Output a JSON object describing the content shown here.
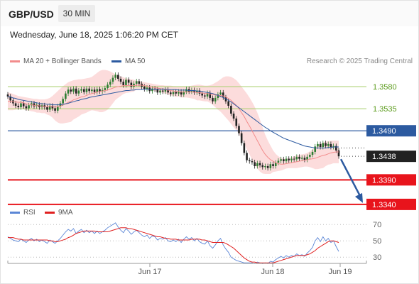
{
  "header": {
    "symbol": "GBP/USD",
    "timeframe": "30 MIN"
  },
  "datetime": "Wednesday, June 18, 2025 1:06:20 PM CET",
  "legend": {
    "ma20_label": "MA 20 + Bollinger Bands",
    "ma50_label": "MA 50",
    "ma20_color": "#f28c8c",
    "ma50_color": "#2c5aa0",
    "credit": "Research © 2025 Trading Central"
  },
  "rsi_legend": {
    "rsi_label": "RSI",
    "ma9_label": "9MA",
    "rsi_color": "#5b86d6",
    "ma9_color": "#e02020"
  },
  "levels": [
    {
      "value": 1.358,
      "label": "1.3580",
      "kind": "green"
    },
    {
      "value": 1.3535,
      "label": "1.3535",
      "kind": "green"
    },
    {
      "value": 1.349,
      "label": "1.3490",
      "kind": "blue"
    },
    {
      "value": 1.3438,
      "label": "1.3438",
      "kind": "current"
    },
    {
      "value": 1.339,
      "label": "1.3390",
      "kind": "red"
    },
    {
      "value": 1.334,
      "label": "1.3340",
      "kind": "red"
    }
  ],
  "colors": {
    "green_level": "#a9cf6e",
    "blue_level": "#2c5aa0",
    "red_level": "#e8141c",
    "current": "#222222",
    "up_candle": "#2e7d32",
    "down_candle": "#222222",
    "band_fill": "#fbd6d6",
    "arrow": "#2c5aa0"
  },
  "x_axis": {
    "ticks": [
      "Jun 17",
      "Jun 18",
      "Jun 19"
    ]
  },
  "rsi_axis": {
    "ticks": [
      "70",
      "50",
      "30"
    ]
  },
  "chart_data": {
    "type": "candlestick",
    "price_range": [
      1.3308,
      1.3622
    ],
    "closes": [
      1.356,
      1.3552,
      1.3546,
      1.3541,
      1.3538,
      1.3546,
      1.354,
      1.3536,
      1.3542,
      1.3546,
      1.354,
      1.3543,
      1.3538,
      1.3542,
      1.3538,
      1.3533,
      1.3541,
      1.3536,
      1.3531,
      1.354,
      1.3546,
      1.3555,
      1.3566,
      1.3574,
      1.357,
      1.3576,
      1.3566,
      1.3572,
      1.3575,
      1.3569,
      1.3576,
      1.3571,
      1.3574,
      1.3569,
      1.3575,
      1.357,
      1.3573,
      1.3577,
      1.3584,
      1.359,
      1.3598,
      1.3604,
      1.3596,
      1.359,
      1.3583,
      1.3594,
      1.3588,
      1.358,
      1.3586,
      1.3591,
      1.3586,
      1.358,
      1.3575,
      1.3578,
      1.3571,
      1.3576,
      1.3574,
      1.3568,
      1.3572,
      1.357,
      1.3574,
      1.3568,
      1.3565,
      1.3569,
      1.3566,
      1.357,
      1.3564,
      1.357,
      1.3575,
      1.357,
      1.3573,
      1.3568,
      1.3572,
      1.3566,
      1.3562,
      1.356,
      1.3567,
      1.3557,
      1.355,
      1.3557,
      1.3564,
      1.3568,
      1.3558,
      1.355,
      1.3541,
      1.3525,
      1.3515,
      1.35,
      1.3485,
      1.3465,
      1.3445,
      1.343,
      1.3428,
      1.3426,
      1.3418,
      1.3424,
      1.342,
      1.3416,
      1.3418,
      1.3414,
      1.3422,
      1.3418,
      1.3425,
      1.3429,
      1.3432,
      1.3428,
      1.3433,
      1.343,
      1.3433,
      1.3432,
      1.3437,
      1.3433,
      1.3435,
      1.3431,
      1.3437,
      1.3441,
      1.3447,
      1.3458,
      1.3463,
      1.3457,
      1.3465,
      1.3459,
      1.3463,
      1.3457,
      1.3459,
      1.345,
      1.3438
    ],
    "ma20": [
      1.355,
      1.355,
      1.3549,
      1.3549,
      1.3548,
      1.3548,
      1.3547,
      1.3545,
      1.3544,
      1.3543,
      1.3542,
      1.3541,
      1.3541,
      1.354,
      1.354,
      1.3539,
      1.3539,
      1.3539,
      1.3538,
      1.3539,
      1.354,
      1.3543,
      1.3545,
      1.3548,
      1.355,
      1.3553,
      1.3555,
      1.3557,
      1.3559,
      1.356,
      1.3562,
      1.3564,
      1.3566,
      1.3567,
      1.3569,
      1.357,
      1.3571,
      1.3572,
      1.3573,
      1.3575,
      1.3577,
      1.3579,
      1.358,
      1.3581,
      1.3582,
      1.3582,
      1.3582,
      1.3582,
      1.3582,
      1.3583,
      1.3583,
      1.3583,
      1.3582,
      1.3581,
      1.358,
      1.3579,
      1.3578,
      1.3577,
      1.3576,
      1.3575,
      1.3574,
      1.3573,
      1.3572,
      1.3571,
      1.357,
      1.357,
      1.3569,
      1.3569,
      1.3569,
      1.3569,
      1.3569,
      1.3569,
      1.3568,
      1.3568,
      1.3567,
      1.3566,
      1.3566,
      1.3565,
      1.3564,
      1.3563,
      1.3562,
      1.3562,
      1.3561,
      1.3559,
      1.3556,
      1.3552,
      1.3547,
      1.3542,
      1.3535,
      1.3527,
      1.3519,
      1.3509,
      1.35,
      1.349,
      1.348,
      1.347,
      1.346,
      1.345,
      1.3442,
      1.3436,
      1.3431,
      1.3428,
      1.3425,
      1.3423,
      1.3422,
      1.3422,
      1.3423,
      1.3424,
      1.3425,
      1.3426,
      1.3427,
      1.3428,
      1.3429,
      1.343,
      1.3431,
      1.3432,
      1.3433,
      1.3434,
      1.3436,
      1.3438,
      1.344,
      1.3441,
      1.3443,
      1.3445,
      1.3446,
      1.3447,
      1.3447
    ],
    "upper_band": [
      1.3568,
      1.3567,
      1.3565,
      1.3563,
      1.3561,
      1.356,
      1.3559,
      1.3558,
      1.3557,
      1.3556,
      1.3555,
      1.3555,
      1.3554,
      1.3554,
      1.3554,
      1.3555,
      1.3557,
      1.3561,
      1.3566,
      1.3571,
      1.3576,
      1.3581,
      1.3585,
      1.3589,
      1.3591,
      1.3593,
      1.3594,
      1.3595,
      1.3595,
      1.3596,
      1.3597,
      1.3598,
      1.36,
      1.3604,
      1.3608,
      1.3612,
      1.3614,
      1.3614,
      1.3613,
      1.3611,
      1.3608,
      1.3605,
      1.3603,
      1.3601,
      1.3599,
      1.3597,
      1.3596,
      1.3595,
      1.3594,
      1.3592,
      1.3591,
      1.359,
      1.3589,
      1.3588,
      1.3587,
      1.3586,
      1.3585,
      1.3584,
      1.3583,
      1.3583,
      1.3582,
      1.3582,
      1.3582,
      1.3581,
      1.3581,
      1.358,
      1.358,
      1.358,
      1.358,
      1.3581,
      1.3582,
      1.3583,
      1.3584,
      1.3584,
      1.3583,
      1.3582,
      1.3582,
      1.3583,
      1.3585,
      1.3588,
      1.3591,
      1.3595,
      1.3599,
      1.3601,
      1.3601,
      1.36,
      1.3597,
      1.3593,
      1.3587,
      1.358,
      1.3573,
      1.3566,
      1.3558,
      1.3549,
      1.3539,
      1.3527,
      1.3513,
      1.3497,
      1.3482,
      1.347,
      1.346,
      1.345,
      1.3443,
      1.3438,
      1.3435,
      1.3433,
      1.3433,
      1.3434,
      1.3436,
      1.3438,
      1.344,
      1.3441,
      1.3442,
      1.3443,
      1.3445,
      1.3448,
      1.3452,
      1.3456,
      1.346,
      1.3463,
      1.3466,
      1.3468,
      1.3469,
      1.347,
      1.347,
      1.347,
      1.347
    ],
    "lower_band": [
      1.3532,
      1.3532,
      1.3532,
      1.3533,
      1.3534,
      1.3534,
      1.3534,
      1.3532,
      1.3531,
      1.353,
      1.3529,
      1.3527,
      1.3527,
      1.3526,
      1.3526,
      1.3523,
      1.3521,
      1.3517,
      1.3511,
      1.3507,
      1.3505,
      1.3505,
      1.3506,
      1.3507,
      1.3508,
      1.3513,
      1.3516,
      1.3519,
      1.3523,
      1.3525,
      1.3527,
      1.353,
      1.3532,
      1.3531,
      1.353,
      1.3528,
      1.3528,
      1.353,
      1.3533,
      1.3539,
      1.3546,
      1.3553,
      1.3557,
      1.3561,
      1.3565,
      1.3567,
      1.3568,
      1.3569,
      1.357,
      1.3574,
      1.3575,
      1.3576,
      1.3575,
      1.3574,
      1.3573,
      1.3572,
      1.3571,
      1.357,
      1.3569,
      1.3567,
      1.3566,
      1.3564,
      1.3562,
      1.3561,
      1.3559,
      1.356,
      1.3558,
      1.3558,
      1.3558,
      1.3557,
      1.3556,
      1.3555,
      1.3552,
      1.3552,
      1.3551,
      1.355,
      1.355,
      1.3547,
      1.3543,
      1.3538,
      1.3533,
      1.3529,
      1.3523,
      1.3517,
      1.3511,
      1.3504,
      1.3497,
      1.3491,
      1.3483,
      1.3474,
      1.3465,
      1.3452,
      1.3442,
      1.3431,
      1.3421,
      1.3413,
      1.3407,
      1.3403,
      1.3402,
      1.3402,
      1.3402,
      1.3406,
      1.3407,
      1.3408,
      1.3409,
      1.3411,
      1.3413,
      1.3414,
      1.3414,
      1.3414,
      1.3414,
      1.3415,
      1.3416,
      1.3417,
      1.3417,
      1.3416,
      1.3414,
      1.3412,
      1.3412,
      1.3413,
      1.3414,
      1.3418,
      1.3421,
      1.3422,
      1.3424,
      1.3424,
      1.3424
    ],
    "ma50": [
      1.356,
      1.3559,
      1.3557,
      1.3556,
      1.3554,
      1.3553,
      1.3552,
      1.3551,
      1.355,
      1.3549,
      1.3548,
      1.3547,
      1.3546,
      1.3545,
      1.3545,
      1.3544,
      1.3544,
      1.3543,
      1.3543,
      1.3543,
      1.3543,
      1.3544,
      1.3545,
      1.3546,
      1.3548,
      1.3549,
      1.3551,
      1.3552,
      1.3554,
      1.3555,
      1.3556,
      1.3558,
      1.3559,
      1.356,
      1.3561,
      1.3562,
      1.3563,
      1.3564,
      1.3565,
      1.3566,
      1.3567,
      1.3568,
      1.3569,
      1.357,
      1.3571,
      1.3572,
      1.3572,
      1.3573,
      1.3573,
      1.3574,
      1.3574,
      1.3574,
      1.3575,
      1.3575,
      1.3575,
      1.3575,
      1.3575,
      1.3575,
      1.3575,
      1.3575,
      1.3575,
      1.3574,
      1.3574,
      1.3574,
      1.3574,
      1.3573,
      1.3573,
      1.3573,
      1.3573,
      1.3572,
      1.3572,
      1.3572,
      1.3571,
      1.3571,
      1.357,
      1.3569,
      1.3568,
      1.3567,
      1.3566,
      1.3564,
      1.3562,
      1.356,
      1.3558,
      1.3555,
      1.3552,
      1.3549,
      1.3545,
      1.3541,
      1.3537,
      1.3533,
      1.3529,
      1.3525,
      1.3521,
      1.3517,
      1.3513,
      1.3509,
      1.3505,
      1.3501,
      1.3497,
      1.3494,
      1.349,
      1.3487,
      1.3484,
      1.3481,
      1.3478,
      1.3475,
      1.3473,
      1.3471,
      1.3469,
      1.3467,
      1.3465,
      1.3463,
      1.3461,
      1.3459,
      1.3458,
      1.3457,
      1.3456,
      1.3455,
      1.3455,
      1.3455,
      1.3455,
      1.3455,
      1.3456,
      1.3456,
      1.3457,
      1.3457,
      1.3457
    ],
    "rsi": [
      55,
      53,
      51,
      50,
      49,
      52,
      50,
      48,
      51,
      53,
      50,
      52,
      49,
      51,
      49,
      47,
      51,
      49,
      47,
      50,
      53,
      57,
      61,
      64,
      62,
      65,
      59,
      62,
      64,
      60,
      63,
      60,
      62,
      59,
      62,
      59,
      61,
      63,
      66,
      68,
      70,
      72,
      67,
      63,
      60,
      65,
      62,
      58,
      61,
      63,
      60,
      57,
      55,
      57,
      53,
      56,
      55,
      51,
      53,
      52,
      54,
      50,
      49,
      51,
      49,
      52,
      48,
      52,
      55,
      52,
      54,
      50,
      53,
      49,
      47,
      46,
      50,
      44,
      41,
      45,
      50,
      53,
      45,
      40,
      36,
      30,
      28,
      26,
      25,
      24,
      23,
      23,
      23,
      23,
      22,
      24,
      23,
      22,
      23,
      22,
      25,
      24,
      27,
      29,
      31,
      29,
      32,
      30,
      32,
      31,
      34,
      32,
      33,
      31,
      35,
      38,
      42,
      50,
      54,
      49,
      55,
      50,
      53,
      48,
      50,
      43,
      37
    ],
    "rsi_ma": [
      54,
      54,
      54,
      53,
      52,
      52,
      51,
      51,
      51,
      51,
      51,
      51,
      51,
      51,
      51,
      51,
      50,
      50,
      49,
      49,
      50,
      51,
      52,
      54,
      55,
      57,
      59,
      60,
      61,
      62,
      62,
      62,
      62,
      62,
      61,
      61,
      61,
      61,
      61,
      62,
      63,
      64,
      65,
      66,
      66,
      66,
      65,
      65,
      64,
      63,
      62,
      61,
      60,
      59,
      58,
      57,
      56,
      55,
      55,
      54,
      53,
      53,
      52,
      52,
      52,
      51,
      51,
      51,
      51,
      51,
      52,
      52,
      52,
      52,
      51,
      51,
      50,
      49,
      48,
      48,
      48,
      48,
      48,
      47,
      45,
      43,
      41,
      38,
      35,
      32,
      29,
      27,
      25,
      24,
      24,
      23,
      23,
      23,
      23,
      23,
      23,
      23,
      24,
      25,
      26,
      27,
      28,
      29,
      30,
      31,
      32,
      32,
      32,
      32,
      33,
      34,
      36,
      38,
      41,
      43,
      45,
      47,
      49,
      50,
      50,
      49,
      48
    ],
    "rsi_range": [
      18,
      78
    ],
    "projection": {
      "from": 1.3438,
      "to": 1.334
    }
  }
}
